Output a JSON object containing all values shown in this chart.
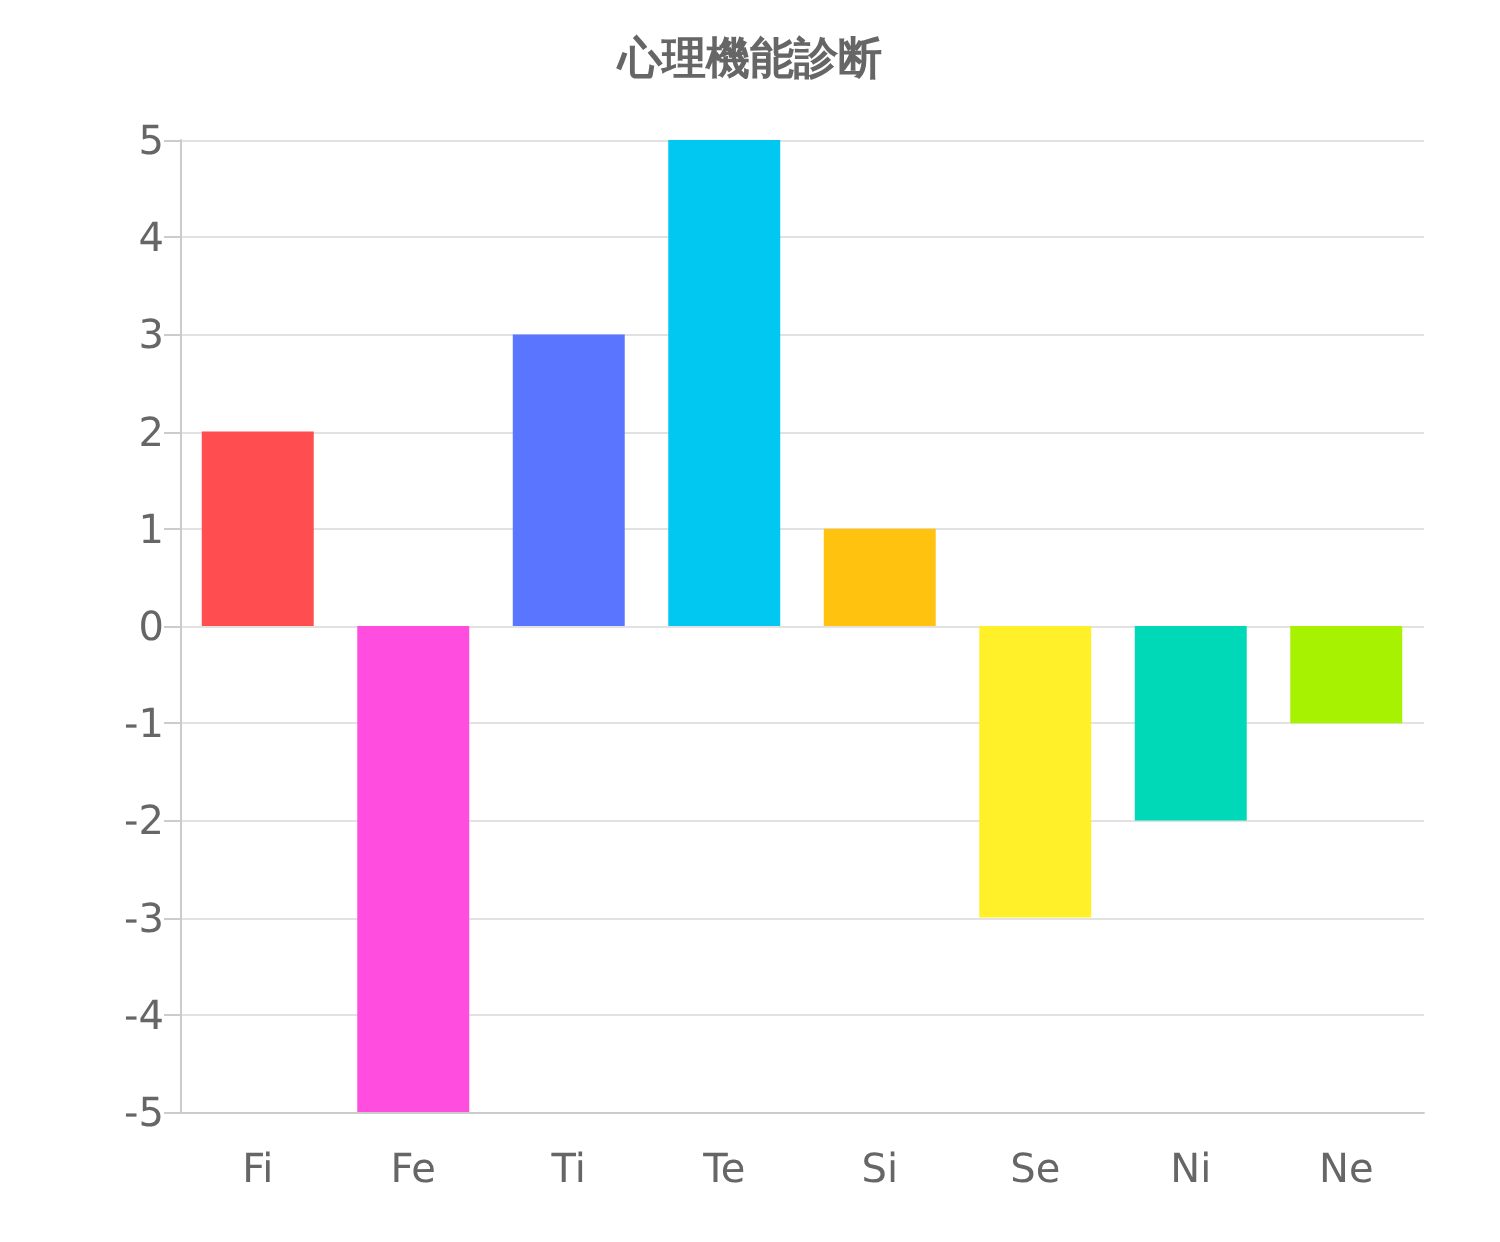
{
  "chart_data": {
    "type": "bar",
    "title": "心理機能診断",
    "categories": [
      "Fi",
      "Fe",
      "Ti",
      "Te",
      "Si",
      "Se",
      "Ni",
      "Ne"
    ],
    "values": [
      2,
      -5,
      3,
      5,
      1,
      -3,
      -2,
      -1
    ],
    "colors": [
      "#ff4d50",
      "#ff4de0",
      "#5a75ff",
      "#00c8f0",
      "#ffc20f",
      "#fff02a",
      "#00d9b8",
      "#a6f200"
    ],
    "ylim": [
      -5,
      5
    ],
    "yticks": [
      -5,
      -4,
      -3,
      -2,
      -1,
      0,
      1,
      2,
      3,
      4,
      5
    ],
    "grid": "y"
  }
}
